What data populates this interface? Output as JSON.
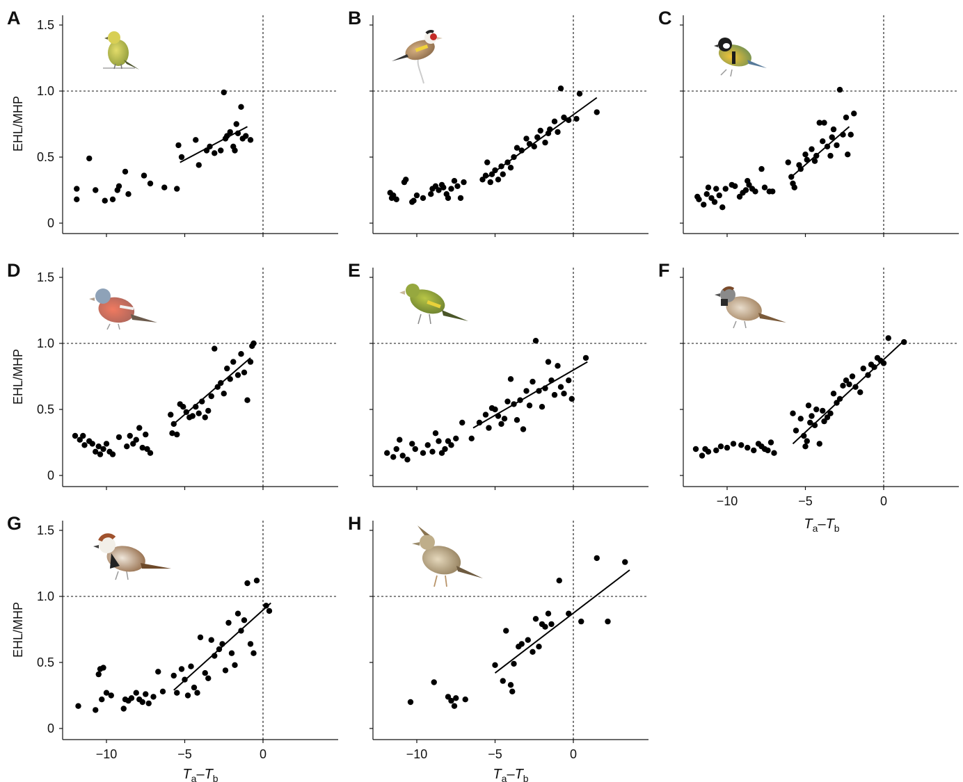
{
  "chart_data": [
    {
      "type": "scatter",
      "panel": "A",
      "ylabel": "EHL/MHP",
      "xlabel": "",
      "icon": "yellow-finch-bird-illustration",
      "xlim": [
        -12.5,
        4.7
      ],
      "ylim": [
        -0.07,
        1.6
      ],
      "yticks": [
        "0",
        "0.5",
        "1.0",
        "1.5"
      ],
      "xticks": [],
      "x": [
        -11.9,
        -11.9,
        -11.1,
        -10.7,
        -10.1,
        -9.6,
        -9.3,
        -9.2,
        -8.8,
        -8.6,
        -7.6,
        -7.2,
        -6.3,
        -5.5,
        -5.4,
        -5.2,
        -4.3,
        -4.1,
        -3.6,
        -3.4,
        -3.1,
        -2.7,
        -2.5,
        -2.4,
        -2.3,
        -2.1,
        -1.9,
        -1.8,
        -1.7,
        -1.6,
        -1.4,
        -1.3,
        -1.1,
        -0.8
      ],
      "y": [
        0.26,
        0.18,
        0.49,
        0.25,
        0.17,
        0.18,
        0.25,
        0.28,
        0.39,
        0.22,
        0.36,
        0.3,
        0.27,
        0.26,
        0.59,
        0.5,
        0.63,
        0.44,
        0.55,
        0.58,
        0.53,
        0.55,
        0.99,
        0.64,
        0.66,
        0.69,
        0.58,
        0.55,
        0.75,
        0.68,
        0.88,
        0.64,
        0.66,
        0.63
      ],
      "fit": [
        [
          -5.3,
          0.46
        ],
        [
          -1.0,
          0.73
        ]
      ],
      "hline": 1.0,
      "vline": 0
    },
    {
      "type": "scatter",
      "panel": "B",
      "ylabel": "",
      "xlabel": "",
      "icon": "goldfinch-bird-illustration",
      "xlim": [
        -12.5,
        4.7
      ],
      "ylim": [
        -0.07,
        1.6
      ],
      "yticks": [],
      "xticks": [],
      "x": [
        -11.7,
        -11.6,
        -11.5,
        -11.3,
        -10.8,
        -10.7,
        -10.3,
        -10.2,
        -10.0,
        -9.6,
        -9.1,
        -9.0,
        -8.8,
        -8.6,
        -8.4,
        -8.3,
        -8.1,
        -8.0,
        -7.8,
        -7.6,
        -7.4,
        -7.2,
        -7.0,
        -5.8,
        -5.6,
        -5.5,
        -5.3,
        -5.2,
        -5.0,
        -4.8,
        -4.6,
        -4.5,
        -4.2,
        -4.0,
        -3.8,
        -3.6,
        -3.3,
        -3.0,
        -2.8,
        -2.5,
        -2.3,
        -2.1,
        -1.8,
        -1.6,
        -1.5,
        -1.2,
        -1.0,
        -0.8,
        -0.6,
        -0.3,
        0.2,
        0.4,
        1.5
      ],
      "y": [
        0.23,
        0.19,
        0.21,
        0.18,
        0.31,
        0.33,
        0.16,
        0.17,
        0.21,
        0.19,
        0.22,
        0.26,
        0.28,
        0.25,
        0.29,
        0.27,
        0.22,
        0.19,
        0.26,
        0.32,
        0.28,
        0.19,
        0.31,
        0.33,
        0.36,
        0.46,
        0.31,
        0.37,
        0.4,
        0.33,
        0.43,
        0.37,
        0.46,
        0.42,
        0.5,
        0.57,
        0.55,
        0.64,
        0.6,
        0.58,
        0.65,
        0.7,
        0.61,
        0.68,
        0.71,
        0.77,
        0.69,
        1.02,
        0.8,
        0.78,
        0.79,
        0.98,
        0.84
      ],
      "fit": [
        [
          -5.6,
          0.34
        ],
        [
          1.5,
          0.95
        ]
      ],
      "hline": 1.0,
      "vline": 0
    },
    {
      "type": "scatter",
      "panel": "C",
      "ylabel": "",
      "xlabel": "",
      "icon": "great-tit-bird-illustration",
      "xlim": [
        -12.5,
        4.7
      ],
      "ylim": [
        -0.07,
        1.6
      ],
      "yticks": [],
      "xticks": [],
      "x": [
        -11.9,
        -11.8,
        -11.5,
        -11.3,
        -11.2,
        -11.0,
        -10.8,
        -10.7,
        -10.5,
        -10.3,
        -10.1,
        -9.7,
        -9.5,
        -9.2,
        -9.0,
        -8.8,
        -8.7,
        -8.6,
        -8.4,
        -8.2,
        -7.8,
        -7.6,
        -7.3,
        -7.1,
        -6.1,
        -5.9,
        -5.8,
        -5.7,
        -5.4,
        -5.3,
        -5.0,
        -4.9,
        -4.6,
        -4.4,
        -4.3,
        -4.1,
        -3.9,
        -3.8,
        -3.6,
        -3.4,
        -3.3,
        -3.2,
        -3.0,
        -2.8,
        -2.6,
        -2.4,
        -2.3,
        -2.1,
        -1.9
      ],
      "y": [
        0.2,
        0.18,
        0.14,
        0.22,
        0.27,
        0.19,
        0.16,
        0.26,
        0.21,
        0.12,
        0.26,
        0.29,
        0.28,
        0.2,
        0.23,
        0.25,
        0.32,
        0.29,
        0.26,
        0.24,
        0.41,
        0.27,
        0.24,
        0.24,
        0.46,
        0.35,
        0.3,
        0.27,
        0.44,
        0.41,
        0.52,
        0.48,
        0.56,
        0.47,
        0.51,
        0.76,
        0.62,
        0.76,
        0.58,
        0.51,
        0.65,
        0.71,
        0.59,
        1.01,
        0.67,
        0.8,
        0.52,
        0.67,
        0.83
      ],
      "fit": [
        [
          -5.9,
          0.35
        ],
        [
          -2.2,
          0.73
        ]
      ],
      "hline": 1.0,
      "vline": 0
    },
    {
      "type": "scatter",
      "panel": "D",
      "ylabel": "EHL/MHP",
      "xlabel": "",
      "icon": "chaffinch-bird-illustration",
      "xlim": [
        -12.5,
        4.7
      ],
      "ylim": [
        -0.07,
        1.6
      ],
      "yticks": [
        "0",
        "0.5",
        "1.0",
        "1.5"
      ],
      "xticks": [],
      "x": [
        -12.0,
        -11.7,
        -11.5,
        -11.4,
        -11.1,
        -10.9,
        -10.7,
        -10.5,
        -10.4,
        -10.2,
        -10.0,
        -9.8,
        -9.6,
        -9.2,
        -8.7,
        -8.5,
        -8.3,
        -8.1,
        -7.9,
        -7.7,
        -7.5,
        -7.4,
        -7.2,
        -5.9,
        -5.8,
        -5.7,
        -5.5,
        -5.3,
        -5.1,
        -4.9,
        -4.7,
        -4.5,
        -4.3,
        -4.1,
        -3.9,
        -3.7,
        -3.5,
        -3.3,
        -3.1,
        -2.9,
        -2.7,
        -2.5,
        -2.3,
        -2.1,
        -1.9,
        -1.6,
        -1.4,
        -1.2,
        -1.0,
        -0.8,
        -0.7,
        -0.6
      ],
      "y": [
        0.3,
        0.27,
        0.3,
        0.23,
        0.26,
        0.24,
        0.18,
        0.22,
        0.16,
        0.2,
        0.24,
        0.18,
        0.16,
        0.29,
        0.22,
        0.3,
        0.24,
        0.27,
        0.36,
        0.21,
        0.31,
        0.2,
        0.17,
        0.46,
        0.32,
        0.39,
        0.31,
        0.54,
        0.52,
        0.48,
        0.44,
        0.45,
        0.52,
        0.47,
        0.56,
        0.44,
        0.49,
        0.6,
        0.96,
        0.67,
        0.7,
        0.62,
        0.81,
        0.73,
        0.86,
        0.76,
        0.92,
        0.78,
        0.57,
        0.86,
        0.98,
        1.0
      ],
      "fit": [
        [
          -5.8,
          0.38
        ],
        [
          -0.8,
          0.89
        ]
      ],
      "hline": 1.0,
      "vline": 0
    },
    {
      "type": "scatter",
      "panel": "E",
      "ylabel": "",
      "xlabel": "",
      "icon": "greenfinch-bird-illustration",
      "xlim": [
        -12.5,
        4.7
      ],
      "ylim": [
        -0.07,
        1.6
      ],
      "yticks": [],
      "xticks": [],
      "x": [
        -11.9,
        -11.5,
        -11.3,
        -11.1,
        -10.9,
        -10.6,
        -10.3,
        -10.1,
        -9.6,
        -9.3,
        -9.0,
        -8.8,
        -8.6,
        -8.4,
        -8.2,
        -8.0,
        -7.8,
        -7.5,
        -7.1,
        -6.5,
        -6.0,
        -5.6,
        -5.4,
        -5.2,
        -5.0,
        -4.8,
        -4.6,
        -4.4,
        -4.2,
        -4.0,
        -3.8,
        -3.6,
        -3.4,
        -3.2,
        -3.0,
        -2.8,
        -2.6,
        -2.4,
        -2.2,
        -2.0,
        -1.8,
        -1.6,
        -1.4,
        -1.2,
        -1.0,
        -0.8,
        -0.6,
        -0.3,
        -0.1,
        0.8
      ],
      "y": [
        0.17,
        0.14,
        0.2,
        0.27,
        0.15,
        0.12,
        0.24,
        0.2,
        0.17,
        0.23,
        0.18,
        0.32,
        0.26,
        0.17,
        0.2,
        0.26,
        0.23,
        0.28,
        0.4,
        0.28,
        0.4,
        0.46,
        0.36,
        0.51,
        0.5,
        0.45,
        0.39,
        0.43,
        0.56,
        0.73,
        0.54,
        0.42,
        0.57,
        0.35,
        0.64,
        0.53,
        0.71,
        1.02,
        0.64,
        0.52,
        0.66,
        0.86,
        0.72,
        0.61,
        0.83,
        0.67,
        0.62,
        0.72,
        0.58,
        0.89
      ],
      "fit": [
        [
          -6.4,
          0.36
        ],
        [
          0.9,
          0.86
        ]
      ],
      "hline": 1.0,
      "vline": 0
    },
    {
      "type": "scatter",
      "panel": "F",
      "ylabel": "",
      "xlabel": "T_a-T_b",
      "icon": "house-sparrow-bird-illustration",
      "xlim": [
        -12.5,
        4.7
      ],
      "ylim": [
        -0.07,
        1.6
      ],
      "yticks": [],
      "xticks": [
        "−10",
        "−5",
        "0"
      ],
      "x": [
        -12.0,
        -11.6,
        -11.4,
        -11.2,
        -10.7,
        -10.4,
        -10.0,
        -9.6,
        -9.1,
        -8.7,
        -8.3,
        -8.0,
        -7.8,
        -7.6,
        -7.4,
        -7.2,
        -7.0,
        -5.8,
        -5.6,
        -5.3,
        -5.1,
        -5.0,
        -4.9,
        -4.8,
        -4.7,
        -4.6,
        -4.4,
        -4.3,
        -4.1,
        -3.9,
        -3.8,
        -3.6,
        -3.4,
        -3.2,
        -3.0,
        -2.8,
        -2.6,
        -2.4,
        -2.2,
        -2.0,
        -1.8,
        -1.5,
        -1.3,
        -1.0,
        -0.8,
        -0.6,
        -0.4,
        -0.2,
        0.0,
        0.3,
        1.3
      ],
      "y": [
        0.2,
        0.15,
        0.2,
        0.18,
        0.19,
        0.22,
        0.21,
        0.24,
        0.23,
        0.21,
        0.19,
        0.24,
        0.22,
        0.2,
        0.19,
        0.25,
        0.17,
        0.47,
        0.34,
        0.43,
        0.3,
        0.22,
        0.26,
        0.53,
        0.4,
        0.45,
        0.38,
        0.5,
        0.24,
        0.49,
        0.41,
        0.44,
        0.47,
        0.62,
        0.55,
        0.58,
        0.68,
        0.72,
        0.69,
        0.75,
        0.67,
        0.63,
        0.81,
        0.76,
        0.84,
        0.82,
        0.89,
        0.87,
        0.85,
        1.04,
        1.01
      ],
      "fit": [
        [
          -5.8,
          0.24
        ],
        [
          1.2,
          1.01
        ]
      ],
      "hline": 1.0,
      "vline": 0
    },
    {
      "type": "scatter",
      "panel": "G",
      "ylabel": "EHL/MHP",
      "xlabel": "T_a-T_b",
      "icon": "spanish-sparrow-bird-illustration",
      "xlim": [
        -12.5,
        4.7
      ],
      "ylim": [
        -0.07,
        1.6
      ],
      "yticks": [
        "0",
        "0.5",
        "1.0",
        "1.5"
      ],
      "xticks": [
        "−10",
        "−5",
        "0"
      ],
      "x": [
        -11.8,
        -10.7,
        -10.5,
        -10.4,
        -10.3,
        -10.2,
        -10.0,
        -9.7,
        -8.9,
        -8.8,
        -8.6,
        -8.4,
        -8.1,
        -7.9,
        -7.7,
        -7.5,
        -7.3,
        -7.0,
        -6.7,
        -6.4,
        -5.7,
        -5.5,
        -5.2,
        -5.0,
        -4.8,
        -4.6,
        -4.4,
        -4.2,
        -4.0,
        -3.7,
        -3.5,
        -3.3,
        -3.1,
        -2.8,
        -2.6,
        -2.4,
        -2.2,
        -2.0,
        -1.8,
        -1.6,
        -1.4,
        -1.2,
        -1.0,
        -0.8,
        -0.6,
        -0.4,
        0.2,
        0.4
      ],
      "y": [
        0.17,
        0.14,
        0.41,
        0.45,
        0.22,
        0.46,
        0.27,
        0.25,
        0.15,
        0.22,
        0.21,
        0.23,
        0.27,
        0.22,
        0.2,
        0.26,
        0.19,
        0.24,
        0.43,
        0.28,
        0.4,
        0.27,
        0.45,
        0.37,
        0.25,
        0.47,
        0.31,
        0.27,
        0.69,
        0.42,
        0.38,
        0.67,
        0.55,
        0.6,
        0.64,
        0.44,
        0.8,
        0.57,
        0.48,
        0.87,
        0.74,
        0.82,
        1.1,
        0.64,
        0.57,
        1.12,
        0.93,
        0.89
      ],
      "fit": [
        [
          -5.7,
          0.29
        ],
        [
          0.5,
          0.95
        ]
      ],
      "hline": 1.0,
      "vline": 0
    },
    {
      "type": "scatter",
      "panel": "H",
      "ylabel": "",
      "xlabel": "T_a-T_b",
      "icon": "crested-lark-bird-illustration",
      "xlim": [
        -12.5,
        4.7
      ],
      "ylim": [
        -0.07,
        1.6
      ],
      "yticks": [],
      "xticks": [
        "−10",
        "−5",
        "0"
      ],
      "x": [
        -10.4,
        -8.9,
        -8.0,
        -7.8,
        -7.6,
        -7.5,
        -6.9,
        -5.0,
        -4.5,
        -4.3,
        -4.0,
        -3.9,
        -3.8,
        -3.5,
        -3.3,
        -2.9,
        -2.6,
        -2.4,
        -2.2,
        -2.0,
        -1.8,
        -1.6,
        -1.4,
        -0.9,
        -0.3,
        0.5,
        1.5,
        2.2,
        3.3
      ],
      "y": [
        0.2,
        0.35,
        0.24,
        0.21,
        0.17,
        0.23,
        0.22,
        0.48,
        0.36,
        0.74,
        0.33,
        0.28,
        0.49,
        0.62,
        0.64,
        0.67,
        0.58,
        0.83,
        0.62,
        0.79,
        0.77,
        0.87,
        0.79,
        1.12,
        0.87,
        0.81,
        1.29,
        0.81,
        1.26
      ],
      "fit": [
        [
          -5.0,
          0.42
        ],
        [
          3.6,
          1.2
        ]
      ],
      "hline": 1.0,
      "vline": 0
    }
  ],
  "axis_text": {
    "ylabel": "EHL/MHP",
    "x_main": "T",
    "x_sub_a": "a",
    "x_dash": "–",
    "x_sub_b": "b"
  }
}
